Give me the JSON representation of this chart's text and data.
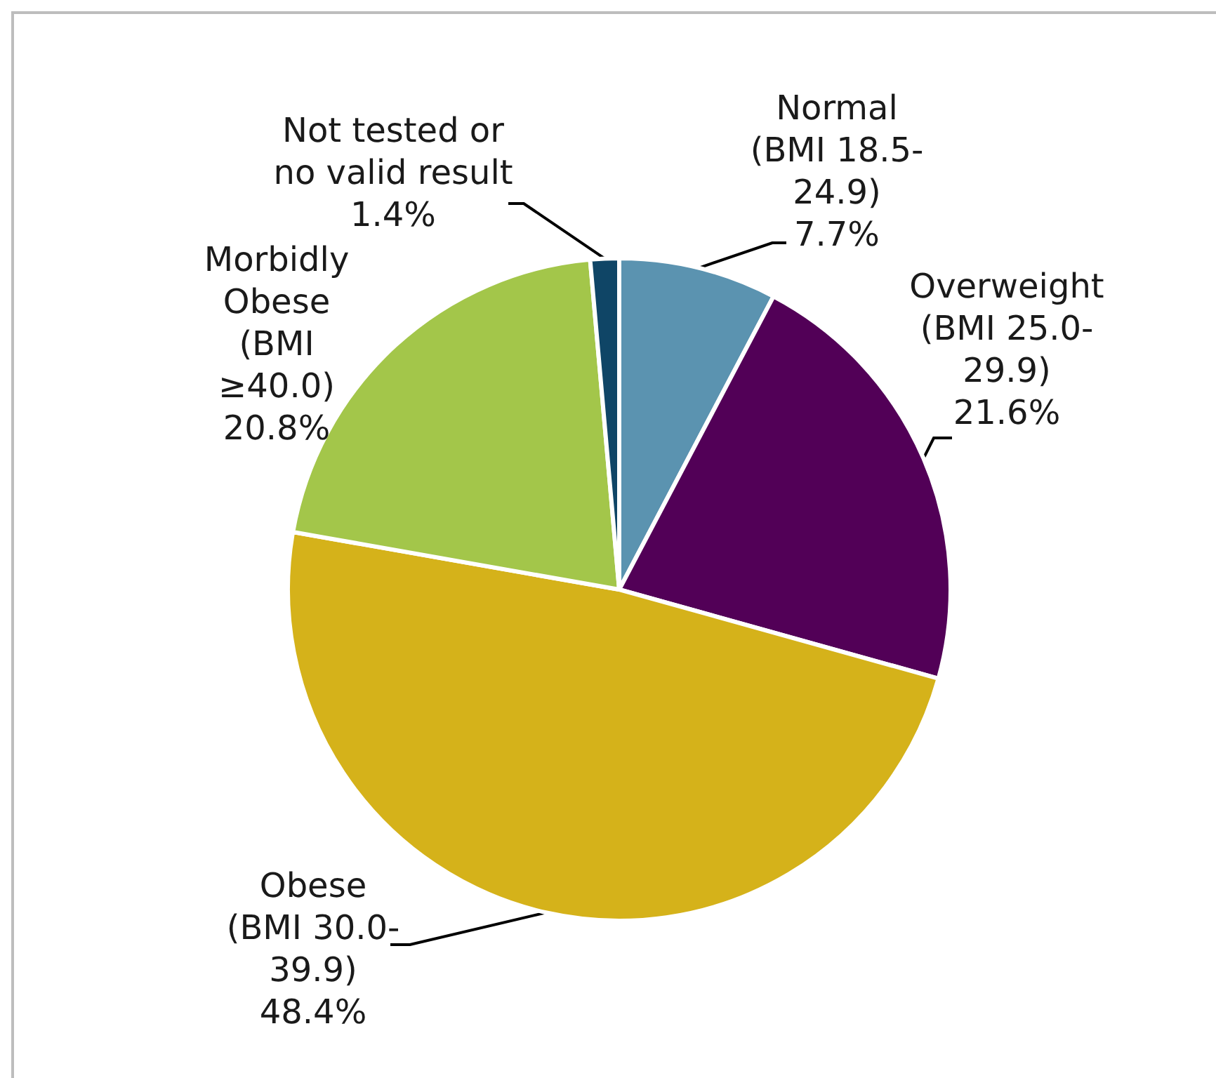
{
  "chart_data": {
    "type": "pie",
    "categories": [
      "Normal (BMI 18.5-24.9)",
      "Overweight (BMI 25.0-29.9)",
      "Obese (BMI 30.0-39.9)",
      "Morbidly Obese (BMI ≥40.0)",
      "Not tested or no valid result"
    ],
    "values": [
      7.7,
      21.6,
      48.4,
      20.8,
      1.4
    ],
    "value_labels": [
      "7.7%",
      "21.6%",
      "48.4%",
      "20.8%",
      "1.4%"
    ],
    "colors": [
      "#5b93b0",
      "#520057",
      "#d5b21a",
      "#a3c64a",
      "#0f4566"
    ],
    "legend": false
  }
}
